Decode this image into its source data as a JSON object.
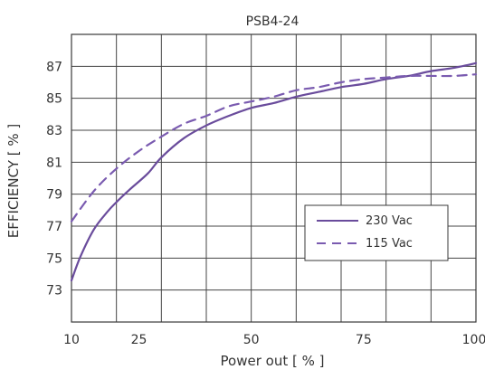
{
  "chart_data": {
    "type": "line",
    "title": "PSB4-24",
    "xlabel": "Power  out [ % ]",
    "ylabel": "EFFICIENCY [ % ]",
    "xlim": [
      10,
      100
    ],
    "ylim": [
      71,
      89
    ],
    "x_ticks": [
      10,
      25,
      50,
      75,
      100
    ],
    "x_tick_labels": [
      "10",
      "25",
      "50",
      "75",
      "100"
    ],
    "y_ticks": [
      73,
      75,
      77,
      79,
      81,
      83,
      85,
      87
    ],
    "y_tick_labels": [
      "73",
      "75",
      "77",
      "79",
      "81",
      "83",
      "85",
      "87"
    ],
    "x_grid": [
      10,
      20,
      30,
      40,
      50,
      60,
      70,
      80,
      90,
      100
    ],
    "y_grid": [
      71,
      73,
      75,
      77,
      79,
      81,
      83,
      85,
      87,
      89
    ],
    "grid": true,
    "legend_position": "lower-right",
    "series": [
      {
        "name": "230 Vac",
        "style": "solid",
        "color": "#6a4c9c",
        "x": [
          10,
          12,
          15,
          18,
          20,
          23,
          27,
          30,
          35,
          40,
          45,
          50,
          55,
          60,
          65,
          70,
          75,
          80,
          85,
          90,
          95,
          100
        ],
        "y": [
          73.6,
          75.1,
          76.8,
          77.9,
          78.5,
          79.3,
          80.3,
          81.3,
          82.5,
          83.3,
          83.9,
          84.4,
          84.7,
          85.1,
          85.4,
          85.7,
          85.9,
          86.2,
          86.4,
          86.7,
          86.9,
          87.2
        ]
      },
      {
        "name": "115 Vac",
        "style": "dashed",
        "color": "#7a5bb0",
        "x": [
          10,
          15,
          20,
          25,
          30,
          35,
          40,
          45,
          50,
          55,
          60,
          65,
          70,
          75,
          80,
          85,
          90,
          95,
          100
        ],
        "y": [
          77.3,
          79.2,
          80.6,
          81.7,
          82.6,
          83.4,
          83.9,
          84.5,
          84.8,
          85.1,
          85.5,
          85.7,
          86.0,
          86.2,
          86.3,
          86.4,
          86.4,
          86.4,
          86.5
        ]
      }
    ]
  }
}
